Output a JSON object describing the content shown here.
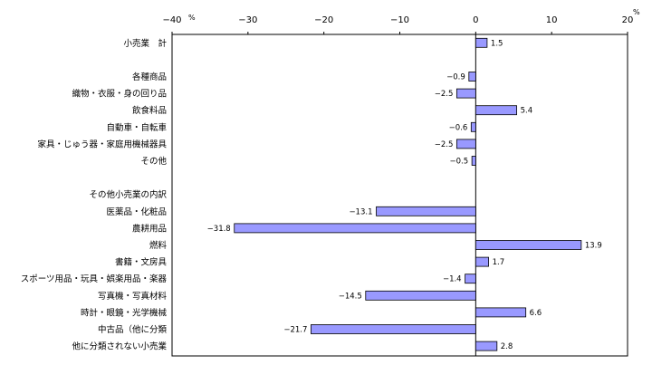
{
  "chart_data": {
    "type": "bar",
    "orientation": "horizontal",
    "title": "",
    "unit_label_left": "%",
    "unit_label_right": "%",
    "xlim": [
      -40,
      20
    ],
    "xticks": [
      -40,
      -30,
      -20,
      -10,
      0,
      10,
      20
    ],
    "xtick_labels": [
      "−40",
      "−30",
      "−20",
      "−10",
      "0",
      "10",
      "20"
    ],
    "bar_color": "#9999ff",
    "rows": [
      {
        "label": "小売業　計",
        "value": 1.5,
        "value_label": "1.5"
      },
      {
        "label": "",
        "value": null,
        "value_label": ""
      },
      {
        "label": "各種商品",
        "value": -0.9,
        "value_label": "−0.9"
      },
      {
        "label": "織物・衣服・身の回り品",
        "value": -2.5,
        "value_label": "−2.5"
      },
      {
        "label": "飲食料品",
        "value": 5.4,
        "value_label": "5.4"
      },
      {
        "label": "自動車・自転車",
        "value": -0.6,
        "value_label": "−0.6"
      },
      {
        "label": "家具・じゅう器・家庭用機械器具",
        "value": -2.5,
        "value_label": "−2.5"
      },
      {
        "label": "その他",
        "value": -0.5,
        "value_label": "−0.5"
      },
      {
        "label": "",
        "value": null,
        "value_label": ""
      },
      {
        "label": "その他小売業の内訳",
        "value": null,
        "value_label": ""
      },
      {
        "label": "医薬品・化粧品",
        "value": -13.1,
        "value_label": "−13.1"
      },
      {
        "label": "農耕用品",
        "value": -31.8,
        "value_label": "−31.8"
      },
      {
        "label": "燃料",
        "value": 13.9,
        "value_label": "13.9"
      },
      {
        "label": "書籍・文房具",
        "value": 1.7,
        "value_label": "1.7"
      },
      {
        "label": "スポーツ用品・玩具・娯楽用品・楽器",
        "value": -1.4,
        "value_label": "−1.4"
      },
      {
        "label": "写真機・写真材料",
        "value": -14.5,
        "value_label": "−14.5"
      },
      {
        "label": "時計・眼鏡・光学機械",
        "value": 6.6,
        "value_label": "6.6"
      },
      {
        "label": "中古品（他に分類",
        "value": -21.7,
        "value_label": "−21.7"
      },
      {
        "label": "他に分類されない小売業",
        "value": 2.8,
        "value_label": "2.8"
      }
    ]
  }
}
